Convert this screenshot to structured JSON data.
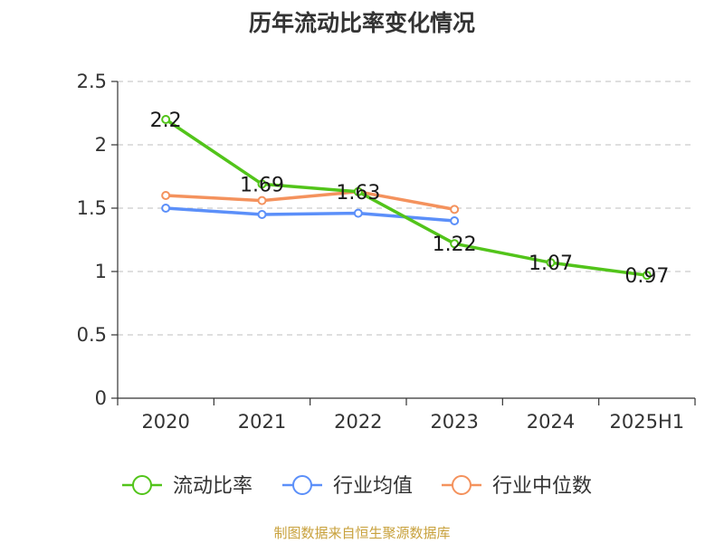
{
  "title": "历年流动比率变化情况",
  "source": "制图数据来自恒生聚源数据库",
  "chart_data": {
    "type": "line",
    "title": "历年流动比率变化情况",
    "xlabel": "",
    "ylabel": "",
    "categories": [
      "2020",
      "2021",
      "2022",
      "2023",
      "2024",
      "2025H1"
    ],
    "ylim": [
      0,
      2.5
    ],
    "yticks": [
      "0",
      "0.5",
      "1",
      "1.5",
      "2",
      "2.5"
    ],
    "grid": true,
    "legend_position": "bottom",
    "series": [
      {
        "name": "流动比率",
        "color": "#52c41a",
        "values": [
          2.2,
          1.69,
          1.63,
          1.22,
          1.07,
          0.97
        ],
        "labels": [
          "2.2",
          "1.69",
          "1.63",
          "1.22",
          "1.07",
          "0.97"
        ]
      },
      {
        "name": "行业均值",
        "color": "#5b8ff9",
        "values": [
          1.5,
          1.45,
          1.46,
          1.4,
          null,
          null
        ]
      },
      {
        "name": "行业中位数",
        "color": "#f4925d",
        "values": [
          1.6,
          1.56,
          1.63,
          1.49,
          null,
          null
        ]
      }
    ]
  }
}
